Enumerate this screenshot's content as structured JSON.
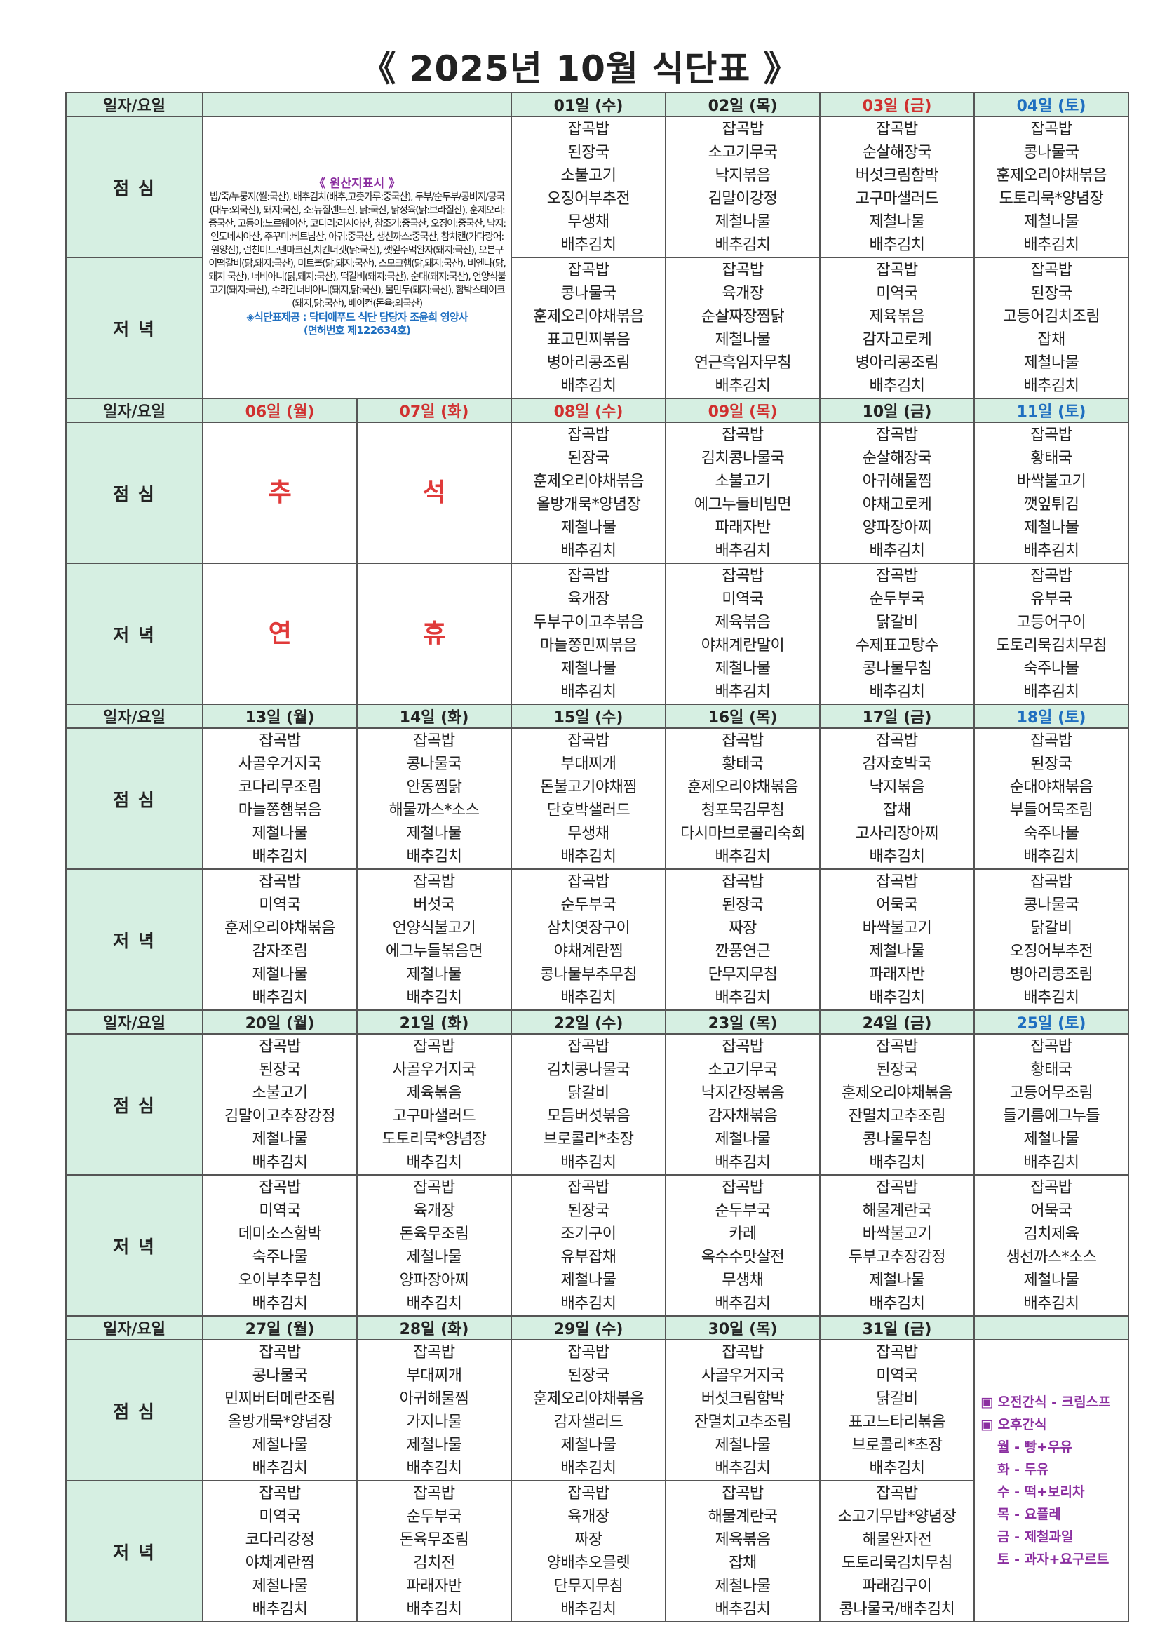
{
  "title": "《 2025년 10월 식단표 》",
  "header_label": "일자/요일",
  "row_labels": [
    "점 심",
    "저 녁"
  ],
  "origin": {
    "title": "《 원산지표시 》",
    "text": "밥/죽/누룽지(쌀:국산), 배추김치(배추,고춧가루:중국산), 두부/순두부/콩비지/콩국(대두:외국산), 돼지:국산, 소:뉴질랜드산, 닭:국산, 닭정육(닭:브라질산), 훈제오리:중국산, 고등어:노르웨이산, 코다리:러시아산, 참조기:중국산, 오징어:중국산, 낙지:인도네시아산, 주꾸미:베트남산, 아귀:중국산, 생선까스:중국산, 참치캔(가다랑어:원양산), 런천미트:덴마크산,치킨너겟(닭:국산), 깻잎주먹완자(돼지:국산), 오븐구이떡갈비(닭,돼지:국산), 미트볼(닭,돼지:국산), 스모크햄(닭,돼지:국산), 비엔나(닭,돼지 국산), 너비아니(닭,돼지:국산), 떡갈비(돼지:국산), 순대(돼지:국산), 언양식불고기(돼지:국산), 수라간너비아니(돼지,닭:국산), 물만두(돼지:국산), 함박스테이크(돼지,닭:국산), 베이컨(돈육:외국산)",
    "provider": "◈식단표제공 : 닥터애푸드 식단 담당자 조윤희 영양사",
    "license": "(면허번호 제122634호)"
  },
  "snacks": [
    "▣ 오전간식 - 크림스프",
    "▣ 오후간식",
    "월 - 빵+우유",
    "화 - 두유",
    "수 - 떡+보리차",
    "목 - 요플레",
    "금 - 제철과일",
    "토 - 과자+요구르트"
  ],
  "weeks": [
    {
      "days": [
        {
          "label": "01일 (수)",
          "color": "#222222"
        },
        {
          "label": "02일 (목)",
          "color": "#222222"
        },
        {
          "label": "03일 (금)",
          "color": "#d0302f"
        },
        {
          "label": "04일 (토)",
          "color": "#1f6fc0"
        }
      ],
      "lunch": [
        [
          "잡곡밥",
          "된장국",
          "소불고기",
          "오징어부추전",
          "무생채",
          "배추김치"
        ],
        [
          "잡곡밥",
          "소고기무국",
          "낙지볶음",
          "김말이강정",
          "제철나물",
          "배추김치"
        ],
        [
          "잡곡밥",
          "순살해장국",
          "버섯크림함박",
          "고구마샐러드",
          "제철나물",
          "배추김치"
        ],
        [
          "잡곡밥",
          "콩나물국",
          "훈제오리야채볶음",
          "도토리묵*양념장",
          "제철나물",
          "배추김치"
        ]
      ],
      "dinner": [
        [
          "잡곡밥",
          "콩나물국",
          "훈제오리야채볶음",
          "표고민찌볶음",
          "병아리콩조림",
          "배추김치"
        ],
        [
          "잡곡밥",
          "육개장",
          "순살짜장찜닭",
          "제철나물",
          "연근흑임자무침",
          "배추김치"
        ],
        [
          "잡곡밥",
          "미역국",
          "제육볶음",
          "감자고로케",
          "병아리콩조림",
          "배추김치"
        ],
        [
          "잡곡밥",
          "된장국",
          "고등어김치조림",
          "잡채",
          "제철나물",
          "배추김치"
        ]
      ]
    },
    {
      "days": [
        {
          "label": "06일 (월)",
          "color": "#d0302f"
        },
        {
          "label": "07일 (화)",
          "color": "#d0302f"
        },
        {
          "label": "08일 (수)",
          "color": "#d0302f"
        },
        {
          "label": "09일 (목)",
          "color": "#d0302f"
        },
        {
          "label": "10일 (금)",
          "color": "#222222"
        },
        {
          "label": "11일 (토)",
          "color": "#1f6fc0"
        }
      ],
      "lunch": [
        [
          "추"
        ],
        [
          "석"
        ],
        [
          "잡곡밥",
          "된장국",
          "훈제오리야채볶음",
          "올방개묵*양념장",
          "제철나물",
          "배추김치"
        ],
        [
          "잡곡밥",
          "김치콩나물국",
          "소불고기",
          "에그누들비빔면",
          "파래자반",
          "배추김치"
        ],
        [
          "잡곡밥",
          "순살해장국",
          "아귀해물찜",
          "야채고로케",
          "양파장아찌",
          "배추김치"
        ],
        [
          "잡곡밥",
          "황태국",
          "바싹불고기",
          "깻잎튀김",
          "제철나물",
          "배추김치"
        ]
      ],
      "dinner": [
        [
          "연"
        ],
        [
          "휴"
        ],
        [
          "잡곡밥",
          "육개장",
          "두부구이고추볶음",
          "마늘쫑민찌볶음",
          "제철나물",
          "배추김치"
        ],
        [
          "잡곡밥",
          "미역국",
          "제육볶음",
          "야채계란말이",
          "제철나물",
          "배추김치"
        ],
        [
          "잡곡밥",
          "순두부국",
          "닭갈비",
          "수제표고탕수",
          "콩나물무침",
          "배추김치"
        ],
        [
          "잡곡밥",
          "유부국",
          "고등어구이",
          "도토리묵김치무침",
          "숙주나물",
          "배추김치"
        ]
      ]
    },
    {
      "days": [
        {
          "label": "13일 (월)",
          "color": "#222222"
        },
        {
          "label": "14일 (화)",
          "color": "#222222"
        },
        {
          "label": "15일 (수)",
          "color": "#222222"
        },
        {
          "label": "16일 (목)",
          "color": "#222222"
        },
        {
          "label": "17일 (금)",
          "color": "#222222"
        },
        {
          "label": "18일 (토)",
          "color": "#1f6fc0"
        }
      ],
      "lunch": [
        [
          "잡곡밥",
          "사골우거지국",
          "코다리무조림",
          "마늘쫑햄볶음",
          "제철나물",
          "배추김치"
        ],
        [
          "잡곡밥",
          "콩나물국",
          "안동찜닭",
          "해물까스*소스",
          "제철나물",
          "배추김치"
        ],
        [
          "잡곡밥",
          "부대찌개",
          "돈불고기야채찜",
          "단호박샐러드",
          "무생채",
          "배추김치"
        ],
        [
          "잡곡밥",
          "황태국",
          "훈제오리야채볶음",
          "청포묵김무침",
          "다시마브로콜리숙회",
          "배추김치"
        ],
        [
          "잡곡밥",
          "감자호박국",
          "낙지볶음",
          "잡채",
          "고사리장아찌",
          "배추김치"
        ],
        [
          "잡곡밥",
          "된장국",
          "순대야채볶음",
          "부들어묵조림",
          "숙주나물",
          "배추김치"
        ]
      ],
      "dinner": [
        [
          "잡곡밥",
          "미역국",
          "훈제오리야채볶음",
          "감자조림",
          "제철나물",
          "배추김치"
        ],
        [
          "잡곡밥",
          "버섯국",
          "언양식불고기",
          "에그누들볶음면",
          "제철나물",
          "배추김치"
        ],
        [
          "잡곡밥",
          "순두부국",
          "삼치엿장구이",
          "야채계란찜",
          "콩나물부추무침",
          "배추김치"
        ],
        [
          "잡곡밥",
          "된장국",
          "짜장",
          "깐풍연근",
          "단무지무침",
          "배추김치"
        ],
        [
          "잡곡밥",
          "어묵국",
          "바싹불고기",
          "제철나물",
          "파래자반",
          "배추김치"
        ],
        [
          "잡곡밥",
          "콩나물국",
          "닭갈비",
          "오징어부추전",
          "병아리콩조림",
          "배추김치"
        ]
      ]
    },
    {
      "days": [
        {
          "label": "20일 (월)",
          "color": "#222222"
        },
        {
          "label": "21일 (화)",
          "color": "#222222"
        },
        {
          "label": "22일 (수)",
          "color": "#222222"
        },
        {
          "label": "23일 (목)",
          "color": "#222222"
        },
        {
          "label": "24일 (금)",
          "color": "#222222"
        },
        {
          "label": "25일 (토)",
          "color": "#1f6fc0"
        }
      ],
      "lunch": [
        [
          "잡곡밥",
          "된장국",
          "소불고기",
          "김말이고추장강정",
          "제철나물",
          "배추김치"
        ],
        [
          "잡곡밥",
          "사골우거지국",
          "제육볶음",
          "고구마샐러드",
          "도토리묵*양념장",
          "배추김치"
        ],
        [
          "잡곡밥",
          "김치콩나물국",
          "닭갈비",
          "모듬버섯볶음",
          "브로콜리*초장",
          "배추김치"
        ],
        [
          "잡곡밥",
          "소고기무국",
          "낙지간장볶음",
          "감자채볶음",
          "제철나물",
          "배추김치"
        ],
        [
          "잡곡밥",
          "된장국",
          "훈제오리야채볶음",
          "잔멸치고추조림",
          "콩나물무침",
          "배추김치"
        ],
        [
          "잡곡밥",
          "황태국",
          "고등어무조림",
          "들기름에그누들",
          "제철나물",
          "배추김치"
        ]
      ],
      "dinner": [
        [
          "잡곡밥",
          "미역국",
          "데미소스함박",
          "숙주나물",
          "오이부추무침",
          "배추김치"
        ],
        [
          "잡곡밥",
          "육개장",
          "돈육무조림",
          "제철나물",
          "양파장아찌",
          "배추김치"
        ],
        [
          "잡곡밥",
          "된장국",
          "조기구이",
          "유부잡채",
          "제철나물",
          "배추김치"
        ],
        [
          "잡곡밥",
          "순두부국",
          "카레",
          "옥수수맛살전",
          "무생채",
          "배추김치"
        ],
        [
          "잡곡밥",
          "해물계란국",
          "바싹불고기",
          "두부고추장강정",
          "제철나물",
          "배추김치"
        ],
        [
          "잡곡밥",
          "어묵국",
          "김치제육",
          "생선까스*소스",
          "제철나물",
          "배추김치"
        ]
      ]
    },
    {
      "days": [
        {
          "label": "27일 (월)",
          "color": "#222222"
        },
        {
          "label": "28일 (화)",
          "color": "#222222"
        },
        {
          "label": "29일 (수)",
          "color": "#222222"
        },
        {
          "label": "30일 (목)",
          "color": "#222222"
        },
        {
          "label": "31일 (금)",
          "color": "#222222"
        }
      ],
      "lunch": [
        [
          "잡곡밥",
          "콩나물국",
          "민찌버터메란조림",
          "올방개묵*양념장",
          "제철나물",
          "배추김치"
        ],
        [
          "잡곡밥",
          "부대찌개",
          "아귀해물찜",
          "가지나물",
          "제철나물",
          "배추김치"
        ],
        [
          "잡곡밥",
          "된장국",
          "훈제오리야채볶음",
          "감자샐러드",
          "제철나물",
          "배추김치"
        ],
        [
          "잡곡밥",
          "사골우거지국",
          "버섯크림함박",
          "잔멸치고추조림",
          "제철나물",
          "배추김치"
        ],
        [
          "잡곡밥",
          "미역국",
          "닭갈비",
          "표고느타리볶음",
          "브로콜리*초장",
          "배추김치"
        ]
      ],
      "dinner": [
        [
          "잡곡밥",
          "미역국",
          "코다리강정",
          "야채계란찜",
          "제철나물",
          "배추김치"
        ],
        [
          "잡곡밥",
          "순두부국",
          "돈육무조림",
          "김치전",
          "파래자반",
          "배추김치"
        ],
        [
          "잡곡밥",
          "육개장",
          "짜장",
          "양배추오믈렛",
          "단무지무침",
          "배추김치"
        ],
        [
          "잡곡밥",
          "해물계란국",
          "제육볶음",
          "잡채",
          "제철나물",
          "배추김치"
        ],
        [
          "잡곡밥",
          "소고기무밥*양념장",
          "해물완자전",
          "도토리묵김치무침",
          "파래김구이",
          "콩나물국/배추김치"
        ]
      ]
    }
  ]
}
